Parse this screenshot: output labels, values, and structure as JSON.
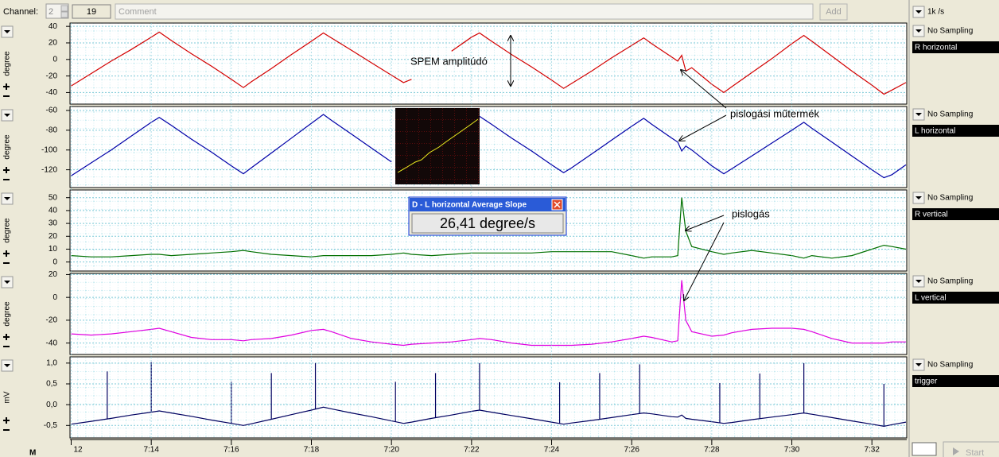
{
  "toolbar": {
    "channel_label": "Channel:",
    "channel": 2,
    "comment_count": 19,
    "comment_placeholder": "Comment",
    "add_button": "Add",
    "rate": "1k /s"
  },
  "annotations": {
    "spem": "SPEM amplitúdó",
    "artifact": "pislogási műtermék",
    "blink": "pislogás"
  },
  "popup": {
    "title": "D - L horizontal Average Slope",
    "value": "26,41 degree/s"
  },
  "footer": {
    "marker": "M",
    "start_button": "Start"
  },
  "chart_data": [
    {
      "type": "line",
      "title": "R horizontal",
      "sampling": "No Sampling",
      "ylabel": "degree",
      "grid": true,
      "xlim": [
        11.97,
        32.87
      ],
      "ylim": [
        -54,
        44
      ],
      "yticks": [
        40,
        20,
        0,
        -20,
        -40
      ],
      "x": [
        12,
        12.5,
        13,
        13.5,
        14,
        14.2,
        14.5,
        15,
        15.5,
        16,
        16.3,
        16.5,
        17,
        17.5,
        18,
        18.3,
        18.5,
        19,
        19.5,
        20,
        20.3,
        20.5,
        21,
        21.5,
        22,
        22.2,
        22.5,
        23,
        23.5,
        24,
        24.3,
        24.5,
        25,
        25.5,
        26,
        26.3,
        26.5,
        27,
        27.15,
        27.25,
        27.35,
        27.5,
        28,
        28.3,
        28.5,
        29,
        29.5,
        30,
        30.3,
        30.5,
        31,
        31.5,
        32,
        32.3,
        32.5,
        32.85
      ],
      "series": [
        {
          "color": "#d40000",
          "values": [
            -32,
            -17,
            -2,
            12,
            27,
            33,
            23,
            7,
            -8,
            -24,
            -34,
            -27,
            -11,
            6,
            22,
            32,
            26,
            11,
            -4,
            -19,
            -28,
            -24,
            null,
            10,
            27,
            32,
            22,
            6,
            -9,
            -25,
            -35,
            -29,
            -14,
            2,
            17,
            26,
            19,
            3,
            -2,
            5,
            -14,
            -10,
            -30,
            -40,
            -33,
            -16,
            1,
            19,
            29,
            22,
            4,
            -14,
            -31,
            -42,
            -37,
            -28
          ]
        }
      ]
    },
    {
      "type": "line",
      "title": "L horizontal",
      "sampling": "No Sampling",
      "ylabel": "degree",
      "grid": true,
      "xlim": [
        11.97,
        32.87
      ],
      "ylim": [
        -138,
        -56
      ],
      "yticks": [
        -60,
        -80,
        -100,
        -120
      ],
      "x": [
        12,
        12.5,
        13,
        13.5,
        14,
        14.2,
        14.5,
        15,
        15.5,
        16,
        16.3,
        16.5,
        17,
        17.5,
        18,
        18.3,
        18.5,
        19,
        19.5,
        20,
        20.3,
        20.5,
        21,
        21.5,
        22,
        22.2,
        22.5,
        23,
        23.5,
        24,
        24.3,
        24.5,
        25,
        25.5,
        26,
        26.3,
        26.5,
        27,
        27.15,
        27.25,
        27.35,
        27.5,
        28,
        28.3,
        28.5,
        29,
        29.5,
        30,
        30.3,
        30.5,
        31,
        31.5,
        32,
        32.3,
        32.5,
        32.85
      ],
      "series": [
        {
          "color": "#0000a8",
          "values": [
            -126,
            -113,
            -100,
            -86,
            -72,
            -67,
            -75,
            -89,
            -102,
            -116,
            -124,
            -118,
            -103,
            -88,
            -73,
            -64,
            -70,
            -84,
            -98,
            -112,
            null,
            null,
            null,
            null,
            null,
            -66,
            -74,
            -88,
            -101,
            -115,
            -123,
            -118,
            -104,
            -90,
            -76,
            -68,
            -74,
            -88,
            -92,
            -101,
            -96,
            -100,
            -116,
            -124,
            -119,
            -106,
            -93,
            -80,
            -72,
            -78,
            -92,
            -106,
            -120,
            -128,
            -125,
            -115
          ]
        }
      ]
    },
    {
      "type": "line",
      "title": "R vertical",
      "sampling": "No Sampling",
      "ylabel": "degree",
      "grid": true,
      "xlim": [
        11.97,
        32.87
      ],
      "ylim": [
        -7,
        56
      ],
      "yticks": [
        50,
        40,
        30,
        20,
        10,
        0
      ],
      "x": [
        12,
        12.5,
        13,
        13.5,
        14,
        14.2,
        14.5,
        15,
        15.5,
        16,
        16.3,
        16.5,
        17,
        17.5,
        18,
        18.3,
        18.5,
        19,
        19.5,
        20,
        20.3,
        20.5,
        21,
        21.5,
        22,
        22.2,
        22.5,
        23,
        23.5,
        24,
        24.3,
        24.5,
        25,
        25.5,
        26,
        26.3,
        26.5,
        27,
        27.15,
        27.25,
        27.35,
        27.5,
        28,
        28.3,
        28.5,
        29,
        29.5,
        30,
        30.3,
        30.5,
        31,
        31.5,
        32,
        32.3,
        32.5,
        32.85
      ],
      "series": [
        {
          "color": "#007000",
          "values": [
            5,
            4,
            4,
            5,
            6,
            6,
            5,
            6,
            7,
            8,
            9,
            8,
            6,
            5,
            4,
            5,
            5,
            5,
            5,
            6,
            7,
            6,
            5,
            6,
            7,
            7,
            7,
            7,
            7,
            8,
            8,
            8,
            8,
            8,
            5,
            3,
            4,
            4,
            5,
            50,
            24,
            12,
            8,
            6,
            7,
            9,
            7,
            5,
            3,
            5,
            3,
            5,
            10,
            13,
            12,
            10
          ]
        }
      ]
    },
    {
      "type": "line",
      "title": "L vertical",
      "sampling": "No Sampling",
      "ylabel": "degree",
      "grid": true,
      "xlim": [
        11.97,
        32.87
      ],
      "ylim": [
        -50,
        21
      ],
      "yticks": [
        20,
        0,
        -20,
        -40
      ],
      "x": [
        12,
        12.5,
        13,
        13.5,
        14,
        14.2,
        14.5,
        15,
        15.5,
        16,
        16.3,
        16.5,
        17,
        17.5,
        18,
        18.3,
        18.5,
        19,
        19.5,
        20,
        20.3,
        20.5,
        21,
        21.5,
        22,
        22.2,
        22.5,
        23,
        23.5,
        24,
        24.3,
        24.5,
        25,
        25.5,
        26,
        26.3,
        26.5,
        27,
        27.15,
        27.25,
        27.35,
        27.5,
        28,
        28.3,
        28.5,
        29,
        29.5,
        30,
        30.3,
        30.5,
        31,
        31.5,
        32,
        32.3,
        32.5,
        32.85
      ],
      "series": [
        {
          "color": "#e000e0",
          "values": [
            -32,
            -33,
            -32,
            -30,
            -28,
            -27,
            -30,
            -35,
            -37,
            -37,
            -38,
            -37,
            -36,
            -33,
            -29,
            -28,
            -30,
            -36,
            -39,
            -41,
            -42,
            -41,
            -40,
            -39,
            -37,
            -36,
            -37,
            -40,
            -42,
            -42,
            -42,
            -42,
            -41,
            -39,
            -36,
            -34,
            -35,
            -39,
            -38,
            15,
            -20,
            -30,
            -34,
            -33,
            -31,
            -28,
            -27,
            -27,
            -28,
            -30,
            -36,
            -40,
            -40,
            -40,
            -39,
            -39
          ]
        }
      ]
    },
    {
      "type": "line",
      "title": "trigger",
      "sampling": "No Sampling",
      "ylabel": "mV",
      "grid": true,
      "xlim": [
        11.97,
        32.87
      ],
      "ylim": [
        -0.8,
        1.15
      ],
      "yticks": [
        {
          "value": 1,
          "label": "1,0"
        },
        {
          "value": 0.5,
          "label": "0,5"
        },
        {
          "value": 0,
          "label": "0,0"
        },
        {
          "value": -0.5,
          "label": "-0,5"
        }
      ],
      "xticks": [
        {
          "value": 12,
          "label": "12"
        },
        {
          "value": 14,
          "label": "7:14"
        },
        {
          "value": 16,
          "label": "7:16"
        },
        {
          "value": 18,
          "label": "7:18"
        },
        {
          "value": 20,
          "label": "7:20"
        },
        {
          "value": 22,
          "label": "7:22"
        },
        {
          "value": 24,
          "label": "7:24"
        },
        {
          "value": 26,
          "label": "7:26"
        },
        {
          "value": 28,
          "label": "7:28"
        },
        {
          "value": 30,
          "label": "7:30"
        },
        {
          "value": 32,
          "label": "7:32"
        }
      ],
      "x": [
        12,
        12.5,
        13,
        13.5,
        14,
        14.2,
        14.5,
        15,
        15.5,
        16,
        16.3,
        16.5,
        17,
        17.5,
        18,
        18.3,
        18.5,
        19,
        19.5,
        20,
        20.3,
        20.5,
        21,
        21.5,
        22,
        22.2,
        22.5,
        23,
        23.5,
        24,
        24.3,
        24.5,
        25,
        25.5,
        26,
        26.3,
        26.5,
        27,
        27.15,
        27.25,
        27.35,
        27.5,
        28,
        28.3,
        28.5,
        29,
        29.5,
        30,
        30.3,
        30.5,
        31,
        31.5,
        32,
        32.3,
        32.5,
        32.85
      ],
      "series": [
        {
          "color": "#000060",
          "values": [
            -0.47,
            -0.4,
            -0.33,
            -0.25,
            -0.18,
            -0.15,
            -0.2,
            -0.28,
            -0.37,
            -0.45,
            -0.5,
            -0.46,
            -0.35,
            -0.24,
            -0.13,
            -0.06,
            -0.1,
            -0.2,
            -0.29,
            -0.39,
            -0.45,
            -0.42,
            -0.33,
            -0.25,
            -0.16,
            -0.13,
            -0.18,
            -0.26,
            -0.34,
            -0.42,
            -0.47,
            -0.44,
            -0.38,
            -0.31,
            -0.24,
            -0.2,
            -0.22,
            -0.29,
            -0.3,
            -0.25,
            -0.33,
            -0.35,
            -0.41,
            -0.45,
            -0.43,
            -0.36,
            -0.3,
            -0.24,
            -0.2,
            -0.23,
            -0.31,
            -0.39,
            -0.47,
            -0.52,
            -0.48,
            -0.42
          ]
        }
      ],
      "pulses": {
        "color": "#000060",
        "x": [
          12.9,
          14.0,
          16.0,
          17.0,
          18.1,
          20.1,
          21.1,
          22.2,
          24.2,
          25.2,
          26.2,
          28.2,
          29.2,
          30.3,
          32.3
        ],
        "values": [
          0.8,
          1.02,
          0.55,
          0.76,
          1.0,
          0.55,
          0.76,
          1.0,
          0.54,
          0.76,
          0.97,
          0.52,
          0.75,
          1.0,
          0.5
        ]
      }
    }
  ]
}
